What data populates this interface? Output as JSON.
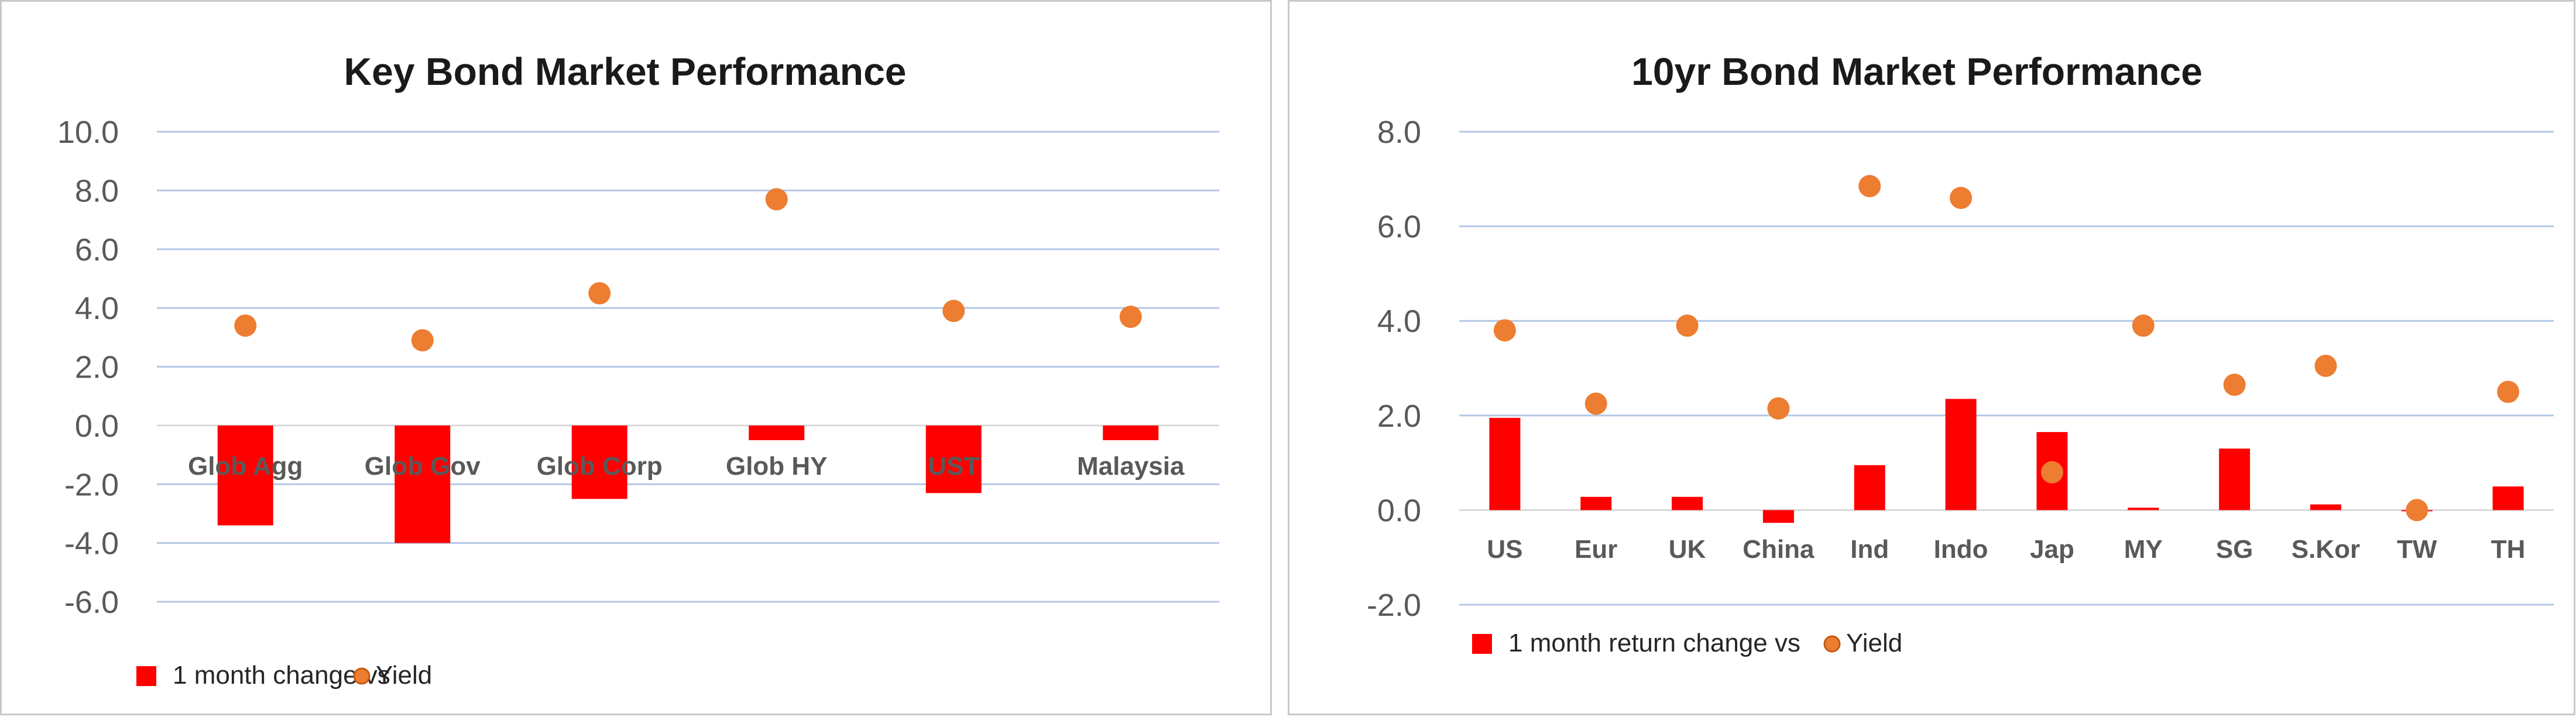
{
  "chart_data": [
    {
      "type": "bar",
      "title": "Key  Bond Market Performance",
      "categories": [
        "Glob Agg",
        "Glob Gov",
        "Glob Corp",
        "Glob HY",
        "UST",
        "Malaysia"
      ],
      "series": [
        {
          "name": "1 month change vs",
          "kind": "bar",
          "color": "#ff0000",
          "values": [
            -3.4,
            -4.0,
            -2.5,
            -0.5,
            -2.3,
            -0.5
          ]
        },
        {
          "name": "Yield",
          "kind": "scatter",
          "color": "#ed7d31",
          "values": [
            3.4,
            2.9,
            4.5,
            7.7,
            3.9,
            3.7
          ]
        }
      ],
      "ylim": [
        -6.0,
        10.0
      ],
      "yticks": [
        "10.0",
        "8.0",
        "6.0",
        "4.0",
        "2.0",
        "0.0",
        "-2.0",
        "-4.0",
        "-6.0"
      ],
      "ytick_values": [
        10,
        8,
        6,
        4,
        2,
        0,
        -2,
        -4,
        -6
      ],
      "grid": true,
      "legend_position": "bottom-left"
    },
    {
      "type": "bar",
      "title": "10yr Bond Market Performance",
      "categories": [
        "US",
        "Eur",
        "UK",
        "China",
        "Ind",
        "Indo",
        "Jap",
        "MY",
        "SG",
        "S.Kor",
        "TW",
        "TH"
      ],
      "series": [
        {
          "name": "1 month return change vs",
          "kind": "bar",
          "color": "#ff0000",
          "values": [
            1.95,
            0.28,
            0.28,
            -0.27,
            0.95,
            2.35,
            1.65,
            0.05,
            1.3,
            0.12,
            0.0,
            0.5
          ]
        },
        {
          "name": "Yield",
          "kind": "scatter",
          "color": "#ed7d31",
          "values": [
            3.8,
            2.25,
            3.9,
            2.15,
            6.85,
            6.6,
            0.8,
            3.9,
            2.65,
            3.05,
            0.0,
            2.5
          ]
        }
      ],
      "ylim": [
        -2.0,
        8.0
      ],
      "yticks": [
        "8.0",
        "6.0",
        "4.0",
        "2.0",
        "0.0",
        "-2.0"
      ],
      "ytick_values": [
        8,
        6,
        4,
        2,
        0,
        -2
      ],
      "grid": true,
      "legend_position": "bottom-left"
    }
  ]
}
